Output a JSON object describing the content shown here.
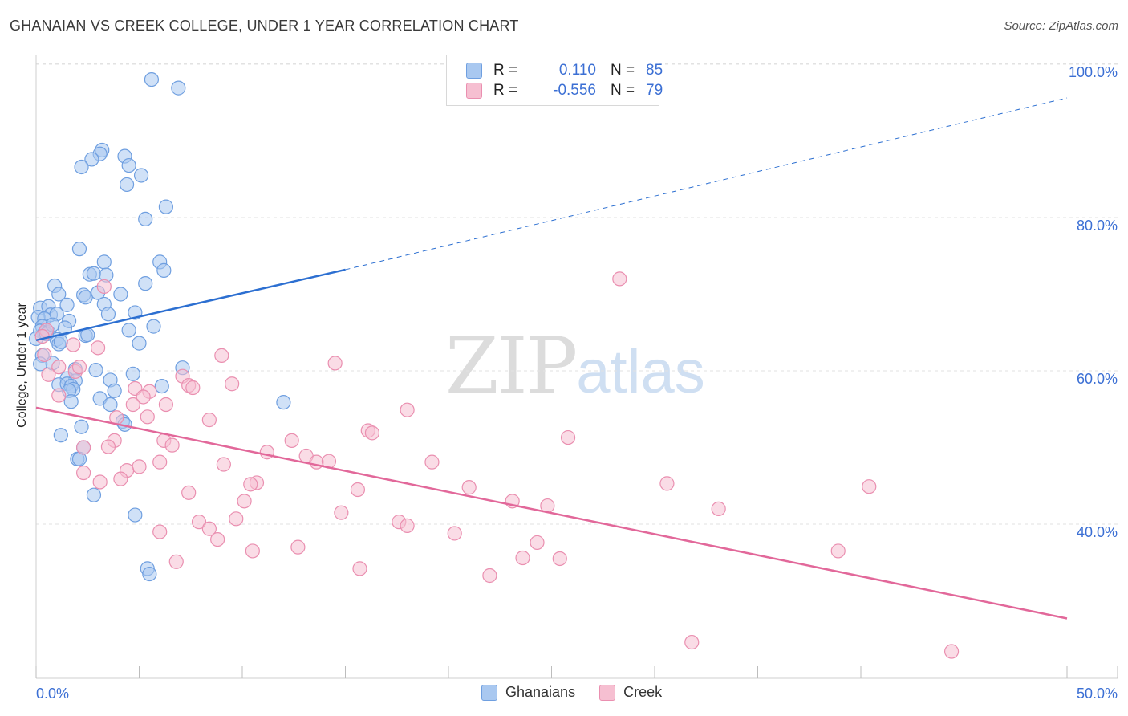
{
  "header": {
    "title": "GHANAIAN VS CREEK COLLEGE, UNDER 1 YEAR CORRELATION CHART",
    "source": "Source: ZipAtlas.com"
  },
  "legend": {
    "rows": [
      {
        "r_label": "R =",
        "r_value": "0.110",
        "n_label": "N =",
        "n_value": "85"
      },
      {
        "r_label": "R =",
        "r_value": "-0.556",
        "n_label": "N =",
        "n_value": "79"
      }
    ]
  },
  "watermark": {
    "zip": "ZIP",
    "atlas": "atlas"
  },
  "colors": {
    "blue_fill": "#a9c8f0",
    "blue_stroke": "#6f9fe0",
    "blue_line": "#2c6fd1",
    "pink_fill": "#f6bfd1",
    "pink_stroke": "#ea8fb0",
    "pink_line": "#e2689a",
    "axis_text": "#3b6fd4",
    "grid": "#e2e2e2"
  },
  "chart_data": {
    "type": "scatter",
    "title": "GHANAIAN VS CREEK COLLEGE, UNDER 1 YEAR CORRELATION CHART",
    "xlabel": "",
    "ylabel": "College, Under 1 year",
    "xlim": [
      0,
      50
    ],
    "ylim": [
      20,
      104
    ],
    "x_tick_labels": [
      "0.0%",
      "50.0%"
    ],
    "y_ticks": [
      40,
      60,
      80,
      100
    ],
    "y_tick_labels": [
      "40.0%",
      "60.0%",
      "80.0%",
      "100.0%"
    ],
    "grid": true,
    "legend_position": "bottom",
    "series": [
      {
        "name": "Ghanaians",
        "color": "#6f9fe0",
        "trend": {
          "x": [
            0,
            15
          ],
          "y": [
            64.0,
            73.2
          ],
          "dashed_to": [
            50,
            95.6
          ]
        },
        "points": [
          [
            5.6,
            98.0
          ],
          [
            6.9,
            96.9
          ],
          [
            3.2,
            88.8
          ],
          [
            3.1,
            88.3
          ],
          [
            2.7,
            87.6
          ],
          [
            4.3,
            88.0
          ],
          [
            2.2,
            86.6
          ],
          [
            4.5,
            86.8
          ],
          [
            5.1,
            85.5
          ],
          [
            4.4,
            84.3
          ],
          [
            6.3,
            81.4
          ],
          [
            5.3,
            79.8
          ],
          [
            2.1,
            75.9
          ],
          [
            3.3,
            74.2
          ],
          [
            6.0,
            74.2
          ],
          [
            6.2,
            73.1
          ],
          [
            2.6,
            72.6
          ],
          [
            2.8,
            72.7
          ],
          [
            3.4,
            72.5
          ],
          [
            0.9,
            71.1
          ],
          [
            5.3,
            71.4
          ],
          [
            1.1,
            70.0
          ],
          [
            2.3,
            69.9
          ],
          [
            2.4,
            69.6
          ],
          [
            3.0,
            70.2
          ],
          [
            4.1,
            70.0
          ],
          [
            3.3,
            68.7
          ],
          [
            1.5,
            68.6
          ],
          [
            0.2,
            68.2
          ],
          [
            0.6,
            68.4
          ],
          [
            0.7,
            67.3
          ],
          [
            1.0,
            67.4
          ],
          [
            0.1,
            67.0
          ],
          [
            0.4,
            66.8
          ],
          [
            1.6,
            66.5
          ],
          [
            3.5,
            67.4
          ],
          [
            4.8,
            67.6
          ],
          [
            0.3,
            65.8
          ],
          [
            0.2,
            65.2
          ],
          [
            0.6,
            65.0
          ],
          [
            0.4,
            64.9
          ],
          [
            1.0,
            64.1
          ],
          [
            1.1,
            63.5
          ],
          [
            2.4,
            64.6
          ],
          [
            4.5,
            65.3
          ],
          [
            5.7,
            65.8
          ],
          [
            5.0,
            63.6
          ],
          [
            0.3,
            62.0
          ],
          [
            0.8,
            61.0
          ],
          [
            0.2,
            60.9
          ],
          [
            1.9,
            60.2
          ],
          [
            2.9,
            60.1
          ],
          [
            4.7,
            59.6
          ],
          [
            1.5,
            59.0
          ],
          [
            1.9,
            58.7
          ],
          [
            3.6,
            58.8
          ],
          [
            1.1,
            58.2
          ],
          [
            1.5,
            58.3
          ],
          [
            1.7,
            58.0
          ],
          [
            1.8,
            57.6
          ],
          [
            1.6,
            57.4
          ],
          [
            3.8,
            57.4
          ],
          [
            6.1,
            58.0
          ],
          [
            7.1,
            60.4
          ],
          [
            3.1,
            56.4
          ],
          [
            1.7,
            56.0
          ],
          [
            3.6,
            55.6
          ],
          [
            4.2,
            53.4
          ],
          [
            4.3,
            53.0
          ],
          [
            2.2,
            52.7
          ],
          [
            1.2,
            51.6
          ],
          [
            2.3,
            50.0
          ],
          [
            12.0,
            55.9
          ],
          [
            2.0,
            48.5
          ],
          [
            2.1,
            48.5
          ],
          [
            2.8,
            43.8
          ],
          [
            4.8,
            41.2
          ],
          [
            5.4,
            34.2
          ],
          [
            5.5,
            33.5
          ],
          [
            0.0,
            64.2
          ],
          [
            0.5,
            64.8
          ],
          [
            1.2,
            63.8
          ],
          [
            2.5,
            64.7
          ],
          [
            0.8,
            66.0
          ],
          [
            1.4,
            65.6
          ]
        ]
      },
      {
        "name": "Creek",
        "color": "#ea8fb0",
        "trend": {
          "x": [
            0,
            50
          ],
          "y": [
            55.2,
            27.7
          ]
        },
        "points": [
          [
            0.5,
            65.3
          ],
          [
            0.4,
            62.1
          ],
          [
            1.8,
            63.4
          ],
          [
            3.0,
            63.0
          ],
          [
            28.3,
            72.0
          ],
          [
            3.3,
            71.0
          ],
          [
            9.0,
            62.0
          ],
          [
            14.5,
            61.0
          ],
          [
            1.1,
            60.5
          ],
          [
            0.6,
            59.5
          ],
          [
            1.9,
            59.9
          ],
          [
            2.1,
            60.5
          ],
          [
            7.1,
            59.3
          ],
          [
            7.4,
            58.1
          ],
          [
            7.6,
            57.8
          ],
          [
            9.5,
            58.3
          ],
          [
            4.8,
            57.7
          ],
          [
            5.5,
            57.3
          ],
          [
            5.2,
            56.6
          ],
          [
            1.1,
            56.8
          ],
          [
            4.7,
            55.6
          ],
          [
            6.3,
            55.6
          ],
          [
            18.0,
            54.9
          ],
          [
            3.9,
            53.9
          ],
          [
            5.4,
            54.0
          ],
          [
            8.4,
            53.6
          ],
          [
            16.1,
            52.2
          ],
          [
            16.3,
            51.9
          ],
          [
            25.8,
            51.3
          ],
          [
            3.8,
            50.9
          ],
          [
            6.2,
            50.9
          ],
          [
            6.6,
            50.3
          ],
          [
            12.4,
            50.9
          ],
          [
            2.3,
            50.0
          ],
          [
            3.5,
            50.1
          ],
          [
            11.2,
            49.4
          ],
          [
            13.1,
            48.9
          ],
          [
            13.6,
            48.1
          ],
          [
            14.2,
            48.2
          ],
          [
            6.0,
            48.1
          ],
          [
            19.2,
            48.1
          ],
          [
            9.1,
            47.8
          ],
          [
            5.0,
            47.5
          ],
          [
            4.4,
            47.0
          ],
          [
            2.3,
            46.7
          ],
          [
            4.1,
            45.9
          ],
          [
            3.1,
            45.5
          ],
          [
            10.7,
            45.4
          ],
          [
            10.4,
            45.2
          ],
          [
            15.6,
            44.5
          ],
          [
            21.0,
            44.8
          ],
          [
            30.6,
            45.3
          ],
          [
            40.4,
            44.9
          ],
          [
            7.4,
            44.1
          ],
          [
            10.1,
            43.0
          ],
          [
            23.1,
            43.0
          ],
          [
            24.8,
            42.4
          ],
          [
            33.1,
            42.0
          ],
          [
            14.8,
            41.5
          ],
          [
            9.7,
            40.7
          ],
          [
            7.9,
            40.3
          ],
          [
            17.6,
            40.3
          ],
          [
            18.0,
            39.8
          ],
          [
            8.4,
            39.4
          ],
          [
            6.0,
            39.0
          ],
          [
            20.3,
            38.8
          ],
          [
            8.8,
            38.0
          ],
          [
            24.3,
            37.6
          ],
          [
            12.7,
            37.0
          ],
          [
            10.5,
            36.5
          ],
          [
            38.9,
            36.5
          ],
          [
            23.6,
            35.6
          ],
          [
            25.4,
            35.5
          ],
          [
            6.8,
            35.1
          ],
          [
            15.7,
            34.2
          ],
          [
            22.0,
            33.3
          ],
          [
            31.8,
            24.6
          ],
          [
            44.4,
            23.4
          ],
          [
            0.3,
            64.5
          ]
        ]
      }
    ]
  }
}
